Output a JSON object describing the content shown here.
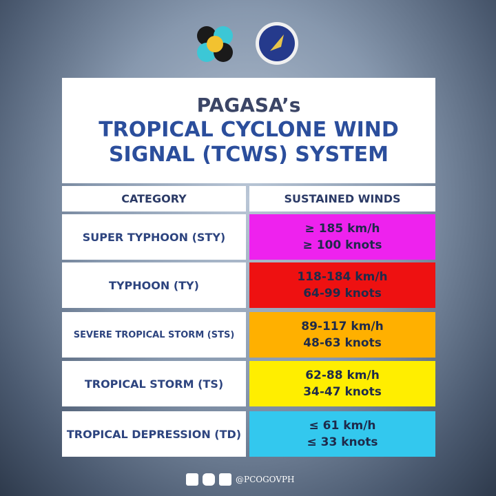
{
  "header": {
    "title_lines": [
      "PAGASA’s",
      "TROPICAL CYCLONE WIND",
      "SIGNAL (TCWS) SYSTEM"
    ]
  },
  "table": {
    "columns": [
      "CATEGORY",
      "SUSTAINED WINDS"
    ],
    "rows": [
      [
        "SUPER TYPHOON (STY)",
        "≥ 185 km/h",
        "≥ 100 knots"
      ],
      [
        "TYPHOON (TY)",
        "118-184 km/h",
        "64-99 knots"
      ],
      [
        "SEVERE TROPICAL STORM (STS)",
        "89-117 km/h",
        "48-63 knots"
      ],
      [
        "TROPICAL STORM (TS)",
        "62-88 km/h",
        "34-47 knots"
      ],
      [
        "TROPICAL DEPRESSION (TD)",
        "≤ 61 km/h",
        "≤ 33 knots"
      ]
    ]
  },
  "footer": {
    "handle": "@PCOGOVPH"
  }
}
